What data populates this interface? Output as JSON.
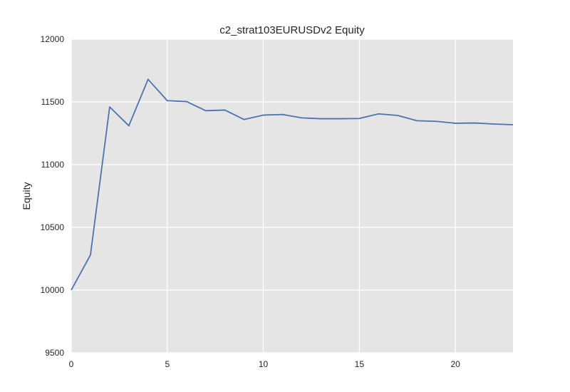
{
  "chart_data": {
    "type": "line",
    "title": "c2_strat103EURUSDv2 Equity",
    "xlabel": "",
    "ylabel": "Equity",
    "xlim": [
      0,
      23
    ],
    "ylim": [
      9500,
      12000
    ],
    "xticks": [
      0,
      5,
      10,
      15,
      20
    ],
    "yticks": [
      9500,
      10000,
      10500,
      11000,
      11500,
      12000
    ],
    "grid": true,
    "background": "#e5e5e5",
    "grid_color": "#ffffff",
    "series": [
      {
        "name": "",
        "color": "#4c72b0",
        "x": [
          0,
          1,
          2,
          3,
          4,
          5,
          6,
          7,
          8,
          9,
          10,
          11,
          12,
          13,
          14,
          15,
          16,
          17,
          18,
          19,
          20,
          21,
          22,
          23
        ],
        "values": [
          10000,
          10280,
          11460,
          11310,
          11680,
          11510,
          11503,
          11430,
          11435,
          11360,
          11395,
          11400,
          11373,
          11366,
          11366,
          11368,
          11405,
          11392,
          11350,
          11345,
          11330,
          11332,
          11324,
          11318
        ]
      }
    ]
  }
}
